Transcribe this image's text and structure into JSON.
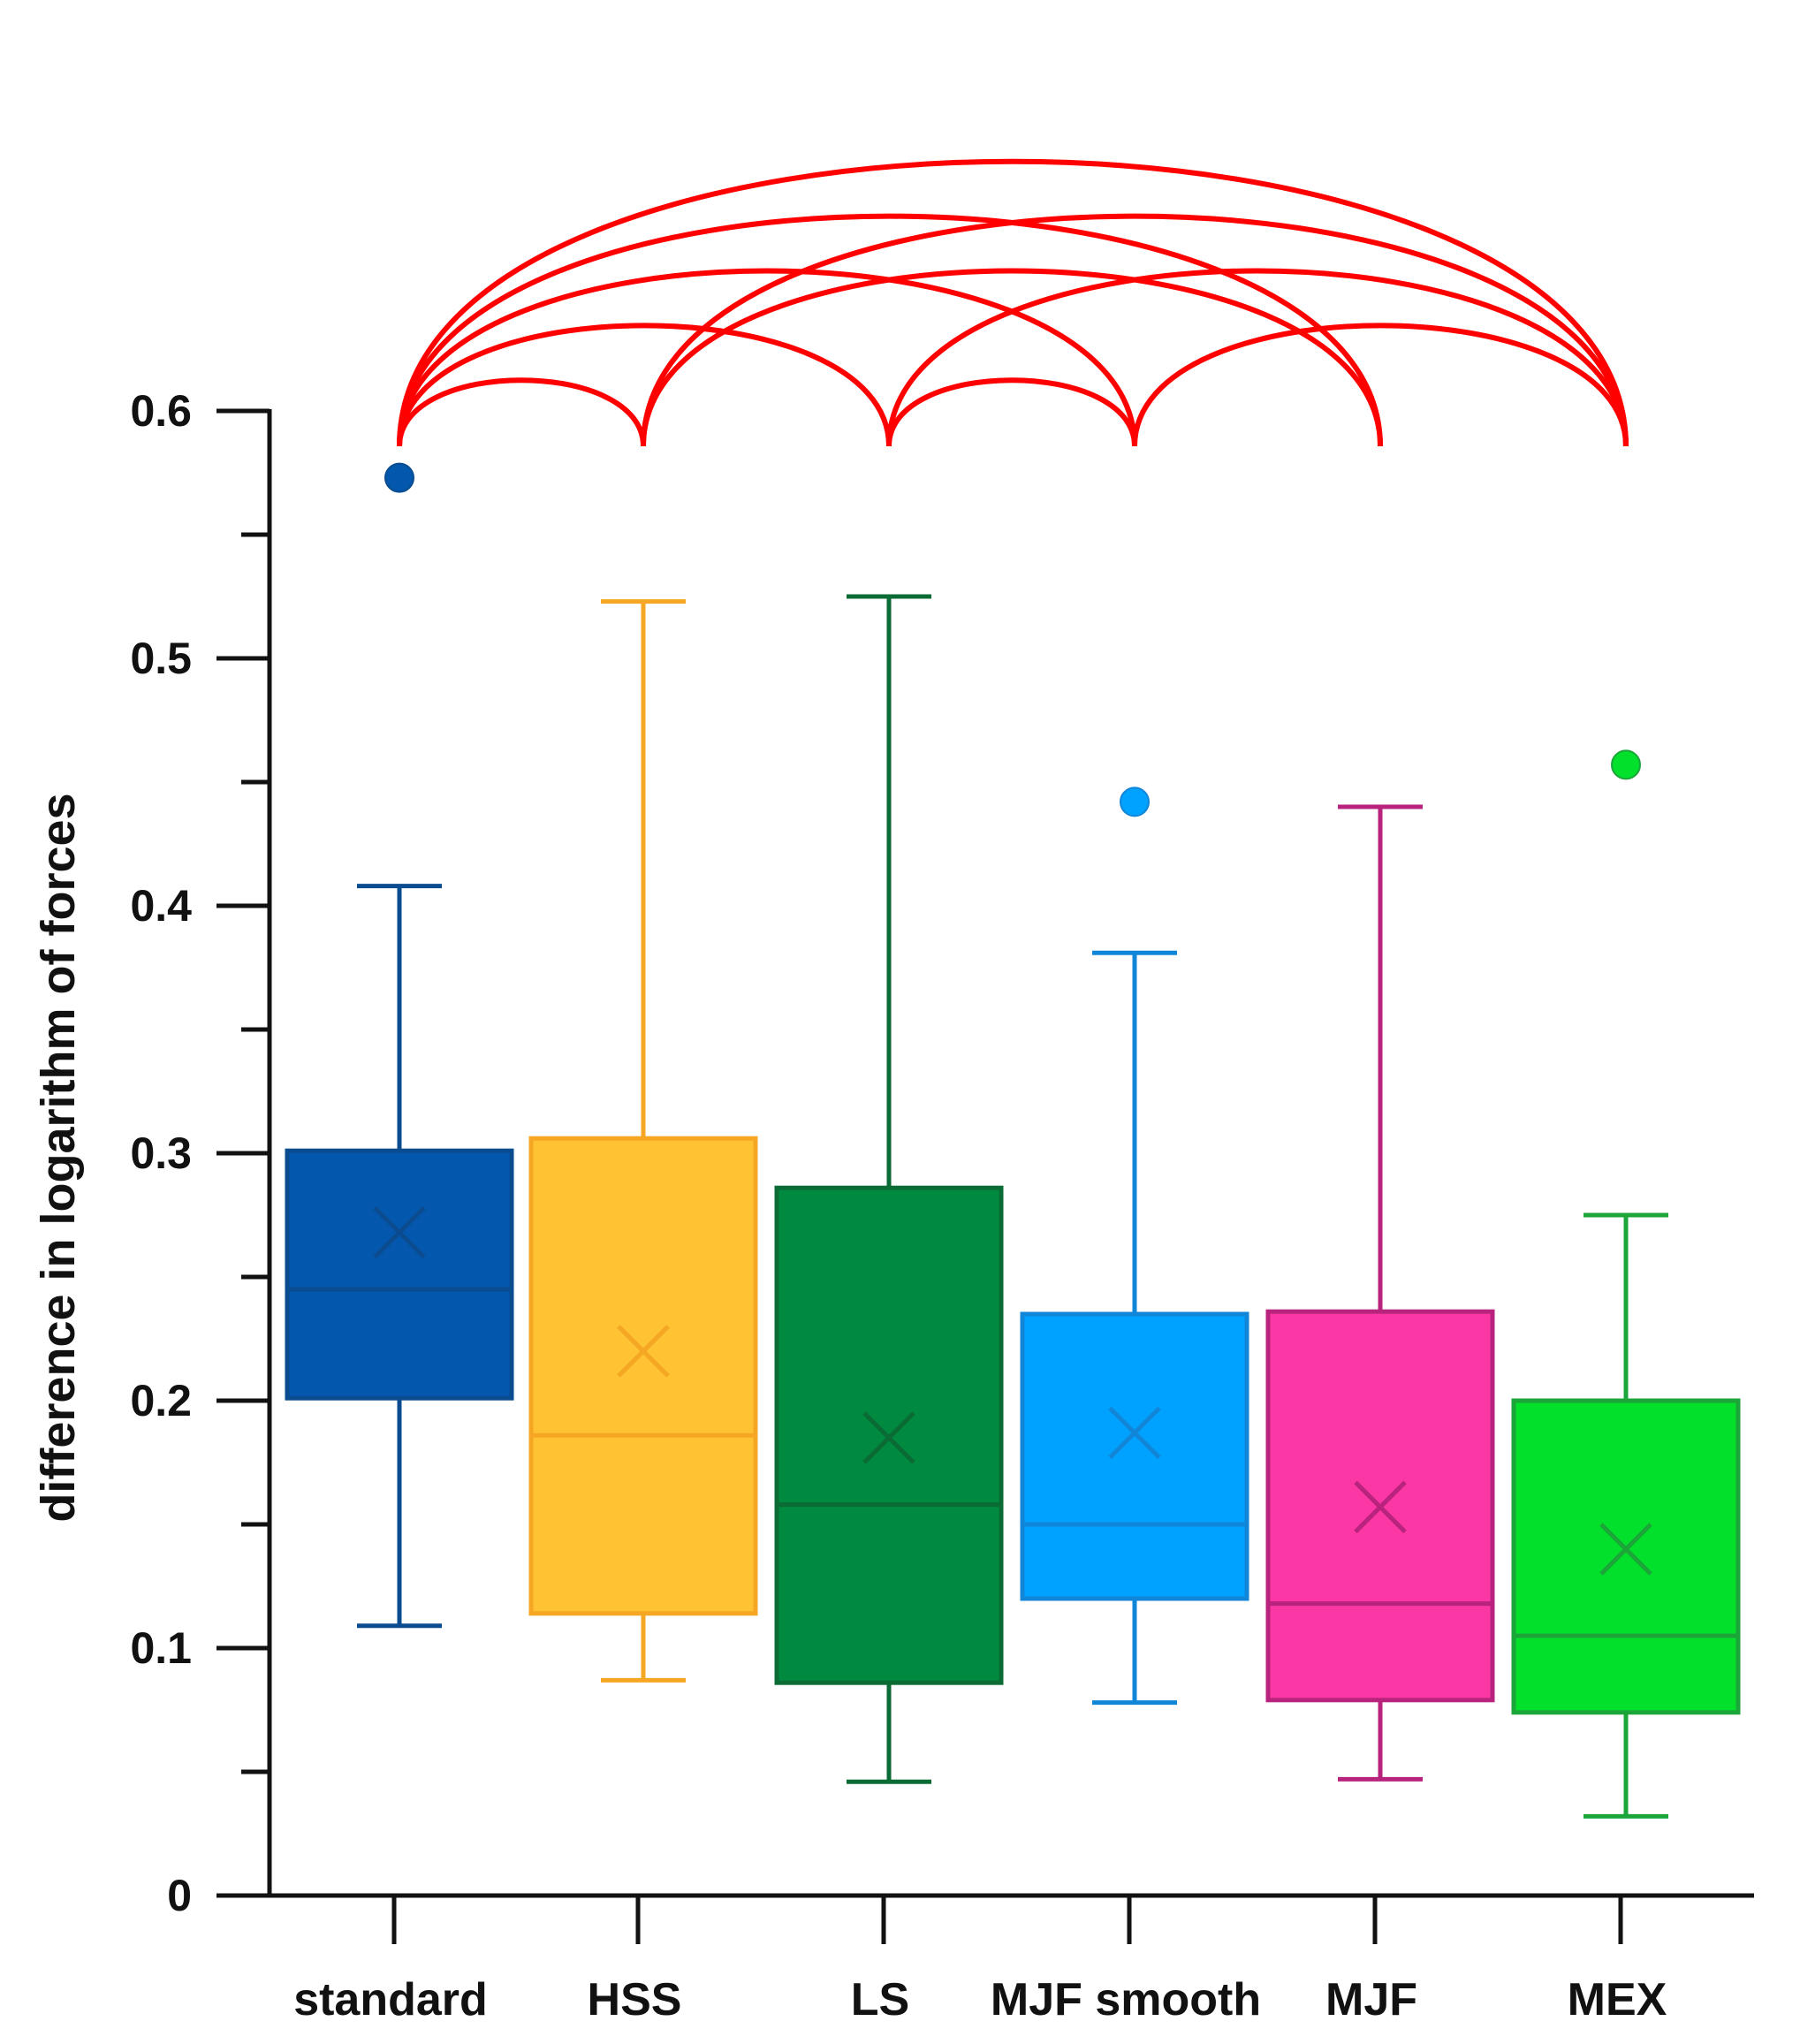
{
  "chart_data": {
    "type": "box",
    "title": "",
    "xlabel": "",
    "ylabel": "difference in logarithm of forces",
    "ylim": [
      0,
      0.6
    ],
    "yticks": [
      0,
      0.1,
      0.2,
      0.3,
      0.4,
      0.5,
      0.6
    ],
    "ytick_labels": [
      "0",
      "0.1",
      "0.2",
      "0.3",
      "0.4",
      "0.5",
      "0.6"
    ],
    "minor_ticks": [
      0.05,
      0.15,
      0.25,
      0.35,
      0.45,
      0.55
    ],
    "categories": [
      "standard",
      "HSS",
      "LS",
      "MJF smooth",
      "MJF",
      "MEX"
    ],
    "series": [
      {
        "name": "standard",
        "whisker_low": 0.109,
        "q1": 0.201,
        "median": 0.245,
        "q3": 0.301,
        "whisker_high": 0.408,
        "mean": 0.268,
        "outliers": [
          0.573
        ],
        "fill": "#0358AD",
        "stroke": "#0A4C8F"
      },
      {
        "name": "HSS",
        "whisker_low": 0.087,
        "q1": 0.114,
        "median": 0.186,
        "q3": 0.306,
        "whisker_high": 0.523,
        "mean": 0.22,
        "outliers": [],
        "fill": "#FFC233",
        "stroke": "#F5A623"
      },
      {
        "name": "LS",
        "whisker_low": 0.046,
        "q1": 0.086,
        "median": 0.158,
        "q3": 0.286,
        "whisker_high": 0.525,
        "mean": 0.185,
        "outliers": [],
        "fill": "#008A40",
        "stroke": "#0B6B34"
      },
      {
        "name": "MJF smooth",
        "whisker_low": 0.078,
        "q1": 0.12,
        "median": 0.15,
        "q3": 0.235,
        "whisker_high": 0.381,
        "mean": 0.187,
        "outliers": [
          0.442
        ],
        "fill": "#00A2FF",
        "stroke": "#1186D8"
      },
      {
        "name": "MJF",
        "whisker_low": 0.047,
        "q1": 0.079,
        "median": 0.118,
        "q3": 0.236,
        "whisker_high": 0.44,
        "mean": 0.157,
        "outliers": [],
        "fill": "#FA37A5",
        "stroke": "#B8237D"
      },
      {
        "name": "MEX",
        "whisker_low": 0.032,
        "q1": 0.074,
        "median": 0.105,
        "q3": 0.2,
        "whisker_high": 0.275,
        "mean": 0.14,
        "outliers": [
          0.457
        ],
        "fill": "#02E02C",
        "stroke": "#1CA63A"
      }
    ],
    "significance_pairs": [
      [
        "standard",
        "HSS"
      ],
      [
        "standard",
        "LS"
      ],
      [
        "standard",
        "MJF smooth"
      ],
      [
        "standard",
        "MJF"
      ],
      [
        "standard",
        "MEX"
      ],
      [
        "HSS",
        "MJF"
      ],
      [
        "HSS",
        "MEX"
      ],
      [
        "LS",
        "MJF smooth"
      ],
      [
        "LS",
        "MEX"
      ],
      [
        "MJF smooth",
        "MEX"
      ]
    ],
    "significance_color": "#FF0000"
  }
}
